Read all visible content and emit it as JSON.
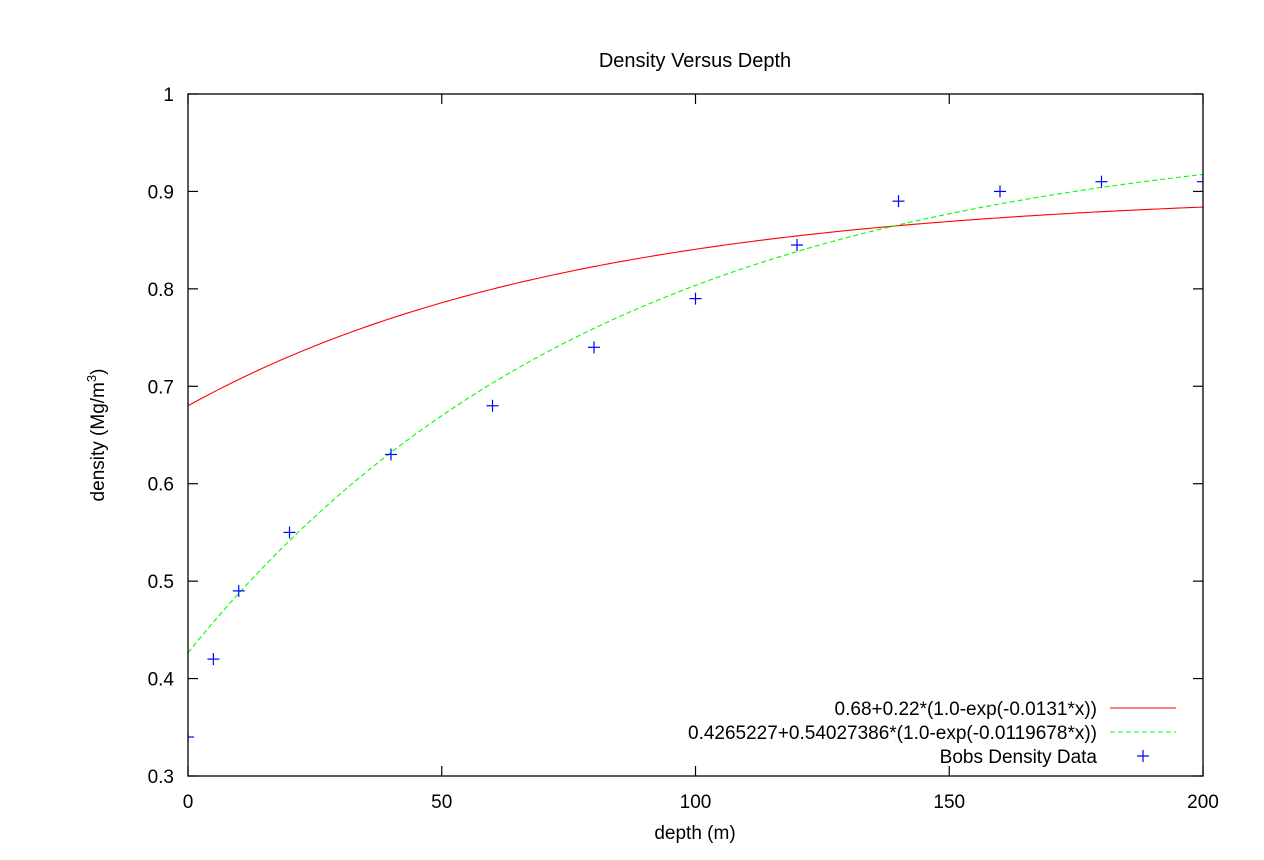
{
  "chart_data": {
    "type": "line",
    "title": "Density Versus Depth",
    "xlabel": "depth (m)",
    "ylabel_main": "density (Mg/m",
    "ylabel_sup": "3",
    "ylabel_close": ")",
    "xlim": [
      0,
      200
    ],
    "ylim": [
      0.3,
      1.0
    ],
    "xticks": [
      0,
      50,
      100,
      150,
      200
    ],
    "xtick_labels": [
      "0",
      "50",
      "100",
      "150",
      "200"
    ],
    "yticks": [
      0.3,
      0.4,
      0.5,
      0.6,
      0.7,
      0.8,
      0.9,
      1.0
    ],
    "ytick_labels": [
      "0.3",
      "0.4",
      "0.5",
      "0.6",
      "0.7",
      "0.8",
      "0.9",
      "1"
    ],
    "grid": false,
    "legend_position": "bottom-right",
    "series": [
      {
        "name": "0.68+0.22*(1.0-exp(-0.0131*x))",
        "kind": "function",
        "a": 0.68,
        "b": 0.22,
        "k": 0.0131,
        "color": "#ff0000",
        "style": "solid"
      },
      {
        "name": "0.4265227+0.54027386*(1.0-exp(-0.0119678*x))",
        "kind": "function",
        "a": 0.4265227,
        "b": 0.54027386,
        "k": 0.0119678,
        "color": "#00ff00",
        "style": "dashed"
      },
      {
        "name": "Bobs Density Data",
        "kind": "points",
        "color": "#0000ff",
        "marker": "plus",
        "x": [
          0,
          5,
          10,
          20,
          40,
          60,
          80,
          100,
          120,
          140,
          160,
          180,
          200
        ],
        "y": [
          0.34,
          0.42,
          0.49,
          0.55,
          0.63,
          0.68,
          0.74,
          0.79,
          0.845,
          0.89,
          0.9,
          0.91,
          0.91
        ]
      }
    ]
  }
}
